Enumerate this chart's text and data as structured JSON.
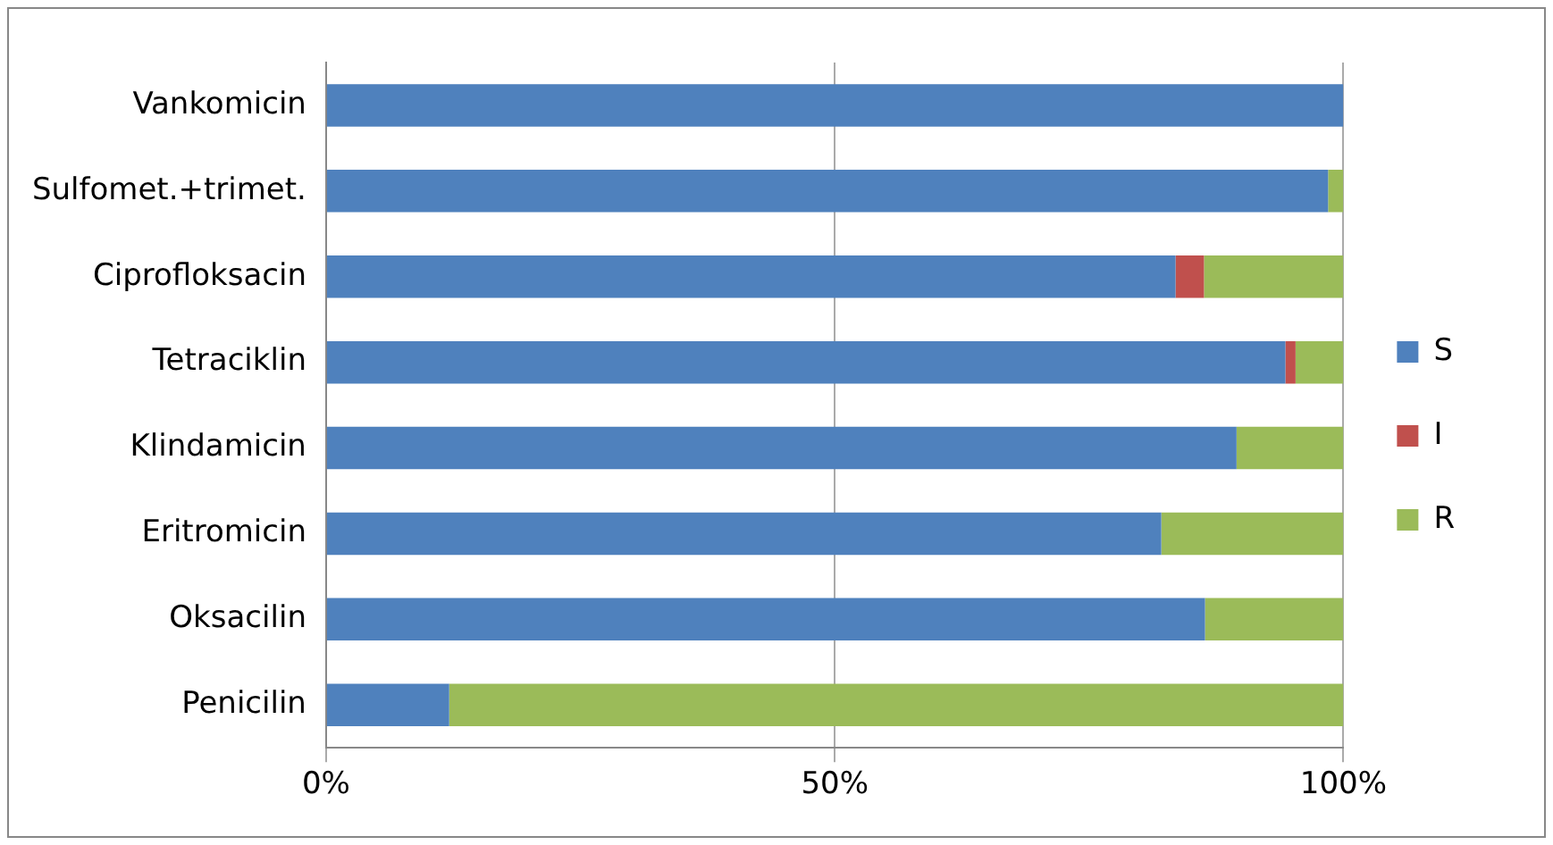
{
  "chart_data": {
    "type": "bar",
    "orientation": "horizontal",
    "stacked": true,
    "categories": [
      "Vankomicin",
      "Sulfomet.+trimet.",
      "Ciprofloksacin",
      "Tetraciklin",
      "Klindamicin",
      "Eritromicin",
      "Oksacilin",
      "Penicilin"
    ],
    "series": [
      {
        "name": "S",
        "color": "#4f81bd",
        "values": [
          100,
          98.5,
          83.5,
          94.3,
          89.5,
          82.1,
          86.4,
          12.1
        ]
      },
      {
        "name": "I",
        "color": "#c0504d",
        "values": [
          0,
          0,
          2.8,
          1.0,
          0,
          0,
          0,
          0
        ]
      },
      {
        "name": "R",
        "color": "#9bbb59",
        "values": [
          0,
          1.5,
          13.7,
          4.7,
          10.5,
          17.9,
          13.6,
          87.9
        ]
      }
    ],
    "xlim": [
      0,
      100
    ],
    "xticks": [
      {
        "value": 0,
        "label": "0%"
      },
      {
        "value": 50,
        "label": "50%"
      },
      {
        "value": 100,
        "label": "100%"
      }
    ],
    "grid": "x",
    "legend": "right"
  }
}
